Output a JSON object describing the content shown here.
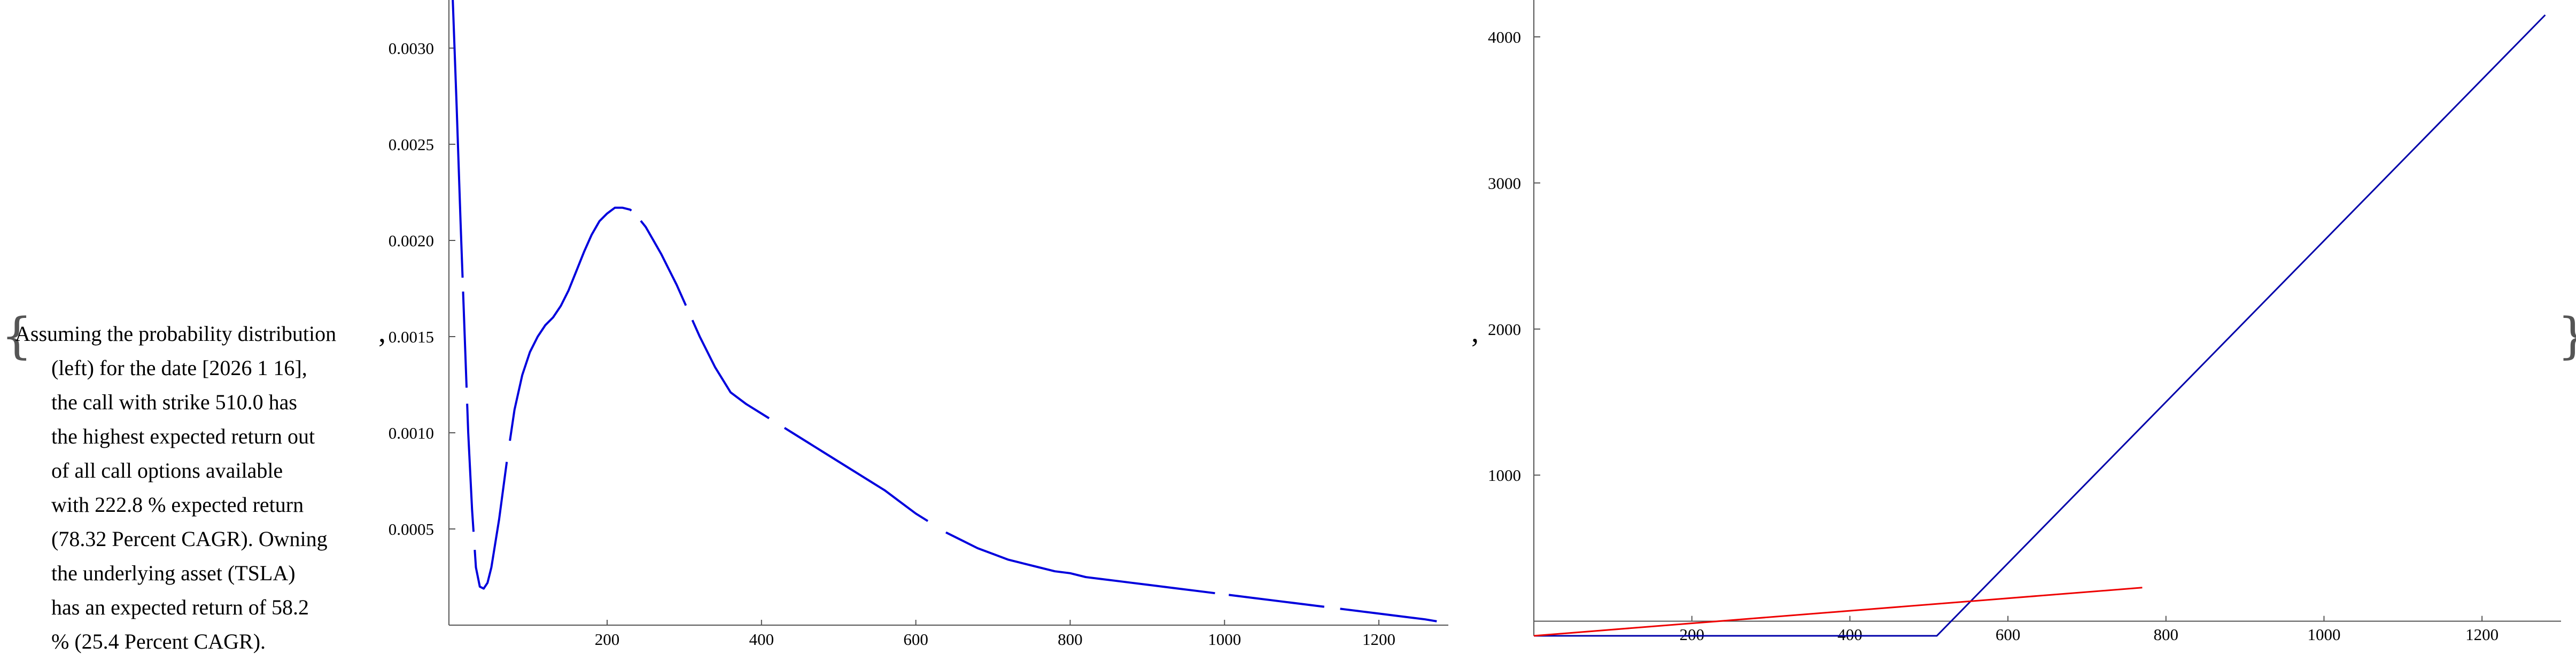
{
  "brace_open": "{",
  "brace_close": "}",
  "separator": ",",
  "description_lines": [
    "Assuming the probability distribution",
    "(left) for the date [2026 1 16],",
    "the call with strike 510.0 has",
    "the highest expected return out",
    "of all call options available",
    "with 222.8 % expected return",
    "(78.32 Percent CAGR). Owning",
    "the underlying asset (TSLA)",
    "has an expected return of 58.2",
    "% (25.4 Percent CAGR)."
  ],
  "chart_data": [
    {
      "type": "line",
      "title": "",
      "xlabel": "",
      "ylabel": "",
      "xlim": [
        -5,
        1290
      ],
      "ylim": [
        0,
        0.00325
      ],
      "x_ticks": [
        "200",
        "400",
        "600",
        "800",
        "1000",
        "1200"
      ],
      "y_ticks": [
        "0.0005",
        "0.0010",
        "0.0015",
        "0.0020",
        "0.0025",
        "0.0030"
      ],
      "line_color": "#0000dd",
      "series": [
        {
          "x": [
            0,
            5,
            10,
            15,
            20,
            25,
            30,
            35,
            40,
            45,
            50,
            60,
            70,
            80,
            90,
            100,
            110,
            120,
            130,
            140,
            150,
            160,
            170,
            180,
            190,
            200,
            210,
            220,
            230,
            240,
            250,
            260,
            270,
            280,
            290,
            300,
            320,
            340,
            360,
            380,
            400,
            420,
            440,
            460,
            480,
            500,
            520,
            540,
            560,
            580,
            600,
            620,
            640,
            660,
            680,
            700,
            720,
            740,
            760,
            780,
            800,
            820,
            840,
            860,
            880,
            900,
            920,
            940,
            960,
            980,
            1000,
            1020,
            1040,
            1060,
            1080,
            1100,
            1120,
            1140,
            1160,
            1180,
            1200,
            1220,
            1240,
            1260,
            1275
          ],
          "y": [
            0.00325,
            0.0027,
            0.0021,
            0.00155,
            0.001,
            0.0006,
            0.0003,
            0.0002,
            0.00019,
            0.00022,
            0.0003,
            0.00055,
            0.00085,
            0.00112,
            0.0013,
            0.00142,
            0.0015,
            0.00156,
            0.0016,
            0.00166,
            0.00174,
            0.00184,
            0.00194,
            0.00203,
            0.0021,
            0.00214,
            0.00217,
            0.00217,
            0.00216,
            0.00212,
            0.00207,
            0.002,
            0.00193,
            0.00185,
            0.00177,
            0.00168,
            0.0015,
            0.00134,
            0.00121,
            0.00115,
            0.0011,
            0.00105,
            0.001,
            0.00095,
            0.0009,
            0.00085,
            0.0008,
            0.00075,
            0.0007,
            0.00064,
            0.00058,
            0.00053,
            0.00048,
            0.00044,
            0.0004,
            0.00037,
            0.00034,
            0.00032,
            0.0003,
            0.00028,
            0.00027,
            0.00025,
            0.00024,
            0.00023,
            0.00022,
            0.00021,
            0.0002,
            0.00019,
            0.00018,
            0.00017,
            0.00016,
            0.00015,
            0.00014,
            0.00013,
            0.00012,
            0.00011,
            0.0001,
            9e-05,
            8e-05,
            7e-05,
            6e-05,
            5e-05,
            4e-05,
            3e-05,
            2e-05
          ]
        }
      ]
    },
    {
      "type": "line",
      "title": "",
      "xlabel": "",
      "ylabel": "",
      "xlim": [
        0,
        1300
      ],
      "ylim": [
        -100,
        4150
      ],
      "x_ticks": [
        "200",
        "400",
        "600",
        "800",
        "1000",
        "1200"
      ],
      "y_ticks": [
        "1000",
        "2000",
        "3000",
        "4000"
      ],
      "series": [
        {
          "color": "#0000aa",
          "x": [
            0,
            510,
            1280
          ],
          "y": [
            -100,
            -100,
            4150
          ]
        },
        {
          "color": "#ee0000",
          "x": [
            0,
            770
          ],
          "y": [
            -100,
            230
          ]
        }
      ]
    }
  ]
}
